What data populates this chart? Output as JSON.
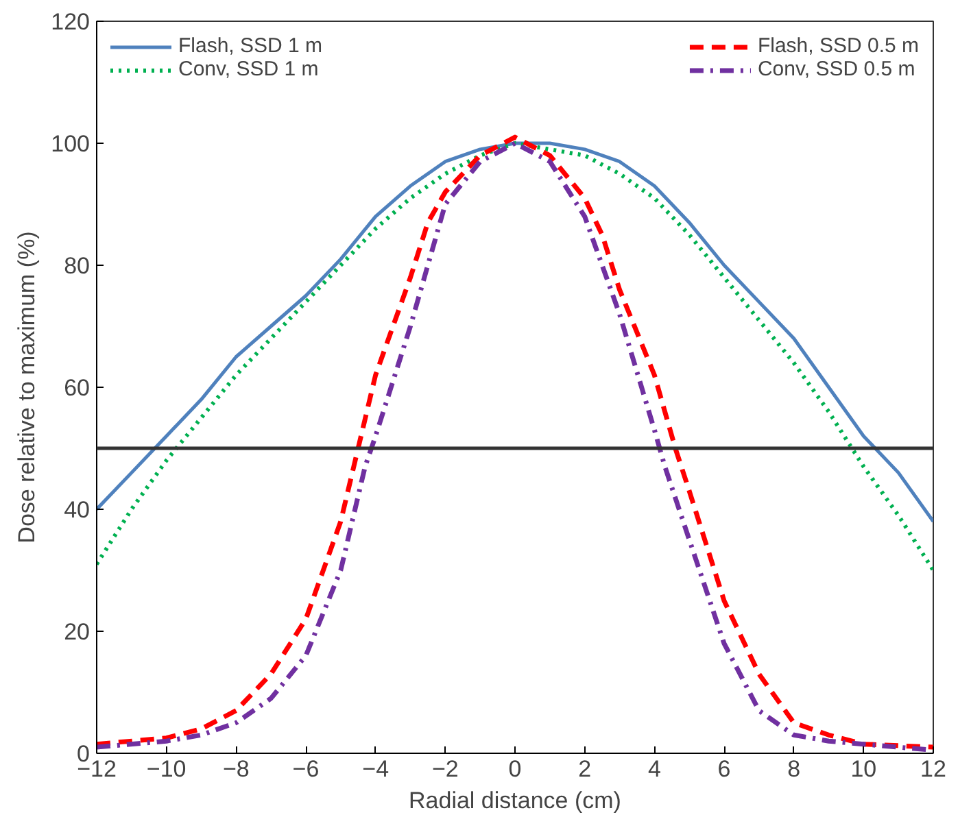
{
  "chart_data": {
    "type": "line",
    "xlabel": "Radial distance (cm)",
    "ylabel": "Dose relative to maximum (%)",
    "xlim": [
      -12,
      12
    ],
    "xticks": [
      -12,
      -10,
      -8,
      -6,
      -4,
      -2,
      0,
      2,
      4,
      6,
      8,
      10,
      12
    ],
    "ylim": [
      0,
      120
    ],
    "yticks": [
      0,
      20,
      40,
      60,
      80,
      100,
      120
    ],
    "grid": false,
    "legend": "top",
    "ref_lines": [
      {
        "axis": "y",
        "value": 50,
        "color": "#333333"
      }
    ],
    "series": [
      {
        "name": "Flash, SSD 1 m",
        "color": "#4f81bd",
        "line_style": "solid",
        "x": [
          -12,
          -11,
          -10,
          -9,
          -8,
          -7,
          -6,
          -5,
          -4,
          -3,
          -2,
          -1,
          0,
          1,
          2,
          3,
          4,
          5,
          6,
          7,
          8,
          9,
          10,
          11,
          12
        ],
        "values": [
          40,
          46,
          52,
          58,
          65,
          70,
          75,
          81,
          88,
          93,
          97,
          99,
          100,
          100,
          99,
          97,
          93,
          87,
          80,
          74,
          68,
          60,
          52,
          46,
          38
        ]
      },
      {
        "name": "Conv, SSD 1 m",
        "color": "#00b050",
        "line_style": "dotted",
        "x": [
          -12,
          -11,
          -10,
          -9,
          -8,
          -7,
          -6,
          -5,
          -4,
          -3,
          -2,
          -1,
          0,
          1,
          2,
          3,
          4,
          5,
          6,
          7,
          8,
          9,
          10,
          11,
          12
        ],
        "values": [
          31,
          40,
          48,
          55,
          62,
          68,
          74,
          80,
          86,
          91,
          95,
          98,
          100,
          99,
          98,
          95,
          91,
          85,
          78,
          71,
          64,
          56,
          47,
          39,
          30
        ]
      },
      {
        "name": "Flash, SSD 0.5 m",
        "color": "#ff0000",
        "line_style": "dashed",
        "x": [
          -12,
          -10,
          -9,
          -8,
          -7,
          -6,
          -5,
          -4.5,
          -4,
          -3,
          -2.5,
          -2,
          -1,
          0,
          1,
          2,
          2.5,
          3,
          4,
          4.6,
          5,
          6,
          7,
          8,
          9,
          10,
          12
        ],
        "values": [
          1.5,
          2.5,
          4,
          7,
          13,
          22,
          38,
          50,
          62,
          78,
          87,
          92,
          98,
          101,
          98,
          91,
          85,
          76,
          62,
          50,
          43,
          25,
          13,
          5,
          3,
          1.5,
          1
        ]
      },
      {
        "name": "Conv, SSD 0.5 m",
        "color": "#7030a0",
        "line_style": "dashdot",
        "x": [
          -12,
          -10,
          -9,
          -8,
          -7,
          -6,
          -5,
          -4.3,
          -4,
          -3,
          -2.5,
          -2,
          -1,
          0,
          1,
          2,
          3,
          4,
          4.3,
          5,
          6,
          7,
          8,
          9,
          10,
          12
        ],
        "values": [
          1,
          2,
          3,
          5,
          9,
          16,
          30,
          47,
          52,
          70,
          80,
          90,
          97,
          100,
          97,
          88,
          72,
          53,
          47,
          35,
          18,
          7,
          3,
          2,
          1.5,
          0.5
        ]
      }
    ]
  }
}
